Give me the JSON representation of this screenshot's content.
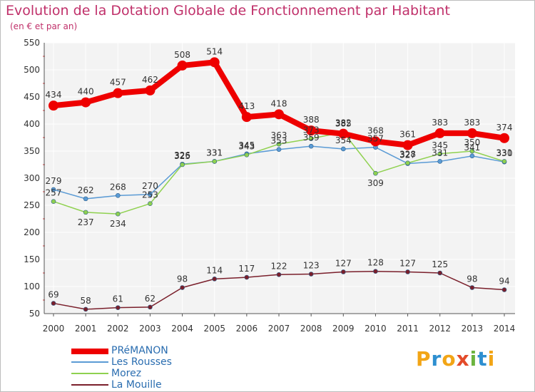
{
  "title": "Evolution de la Dotation Globale de Fonctionnement par Habitant",
  "subtitle": "(en € et par an)",
  "logo": {
    "letters": [
      "P",
      "r",
      "o",
      "x",
      "i",
      "t",
      "i"
    ],
    "colors": [
      "#f2a516",
      "#2e8fd0",
      "#f2a516",
      "#e34b2a",
      "#6cb43f",
      "#2e8fd0",
      "#f2a516"
    ]
  },
  "chart_data": {
    "type": "line",
    "title": "Evolution de la Dotation Globale de Fonctionnement par Habitant",
    "subtitle": "(en € et par an)",
    "x": [
      "2000",
      "2001",
      "2002",
      "2003",
      "2004",
      "2005",
      "2006",
      "2007",
      "2008",
      "2009",
      "2010",
      "2011",
      "2012",
      "2013",
      "2014"
    ],
    "ylim": [
      50,
      550
    ],
    "yticks": [
      50,
      100,
      150,
      200,
      250,
      300,
      350,
      400,
      450,
      500,
      550
    ],
    "grid": true,
    "legend_position": "bottom-left",
    "series": [
      {
        "name": "PRéMANON",
        "color": "#ee0000",
        "values": [
          434,
          440,
          457,
          462,
          508,
          514,
          413,
          418,
          388,
          382,
          368,
          361,
          383,
          383,
          374
        ],
        "labels": [
          "434",
          "440",
          "457",
          "462",
          "508",
          "514",
          "413",
          "418",
          "388",
          "382",
          "368",
          "361",
          "383",
          "383",
          "374"
        ],
        "label_pos": [
          "up",
          "up",
          "up",
          "up",
          "up",
          "up",
          "up",
          "up",
          "up",
          "up",
          "up",
          "up",
          "up",
          "up",
          "up"
        ]
      },
      {
        "name": "Les Rousses",
        "color": "#5b9bd5",
        "values": [
          279,
          262,
          268,
          270,
          326,
          331,
          345,
          353,
          359,
          354,
          357,
          327,
          331,
          341,
          330
        ],
        "labels": [
          "279",
          "262",
          "268",
          "270",
          "326",
          "331",
          "345",
          "353",
          "359",
          "354",
          "357",
          "327",
          "331",
          "341",
          "330"
        ],
        "label_pos": [
          "up",
          "up",
          "up",
          "up",
          "up",
          "up",
          "up",
          "up",
          "up",
          "up",
          "up",
          "up",
          "up",
          "up",
          "up"
        ]
      },
      {
        "name": "Morez",
        "color": "#8fd14f",
        "values": [
          257,
          237,
          234,
          253,
          325,
          331,
          343,
          363,
          373,
          385,
          309,
          328,
          345,
          350,
          331
        ],
        "labels": [
          "257",
          "237",
          "234",
          "253",
          "325",
          "331",
          "343",
          "363",
          "373",
          "385",
          "309",
          "328",
          "345",
          "350",
          "331"
        ],
        "label_pos": [
          "up",
          "down",
          "down",
          "up",
          "up",
          "up",
          "up",
          "up",
          "up",
          "up",
          "down",
          "up",
          "up",
          "up",
          "up"
        ]
      },
      {
        "name": "La Mouille",
        "color": "#7a1f2b",
        "values": [
          69,
          58,
          61,
          62,
          98,
          114,
          117,
          122,
          123,
          127,
          128,
          127,
          125,
          98,
          94
        ],
        "labels": [
          "69",
          "58",
          "61",
          "62",
          "98",
          "114",
          "117",
          "122",
          "123",
          "127",
          "128",
          "127",
          "125",
          "98",
          "94"
        ],
        "label_pos": [
          "up",
          "up",
          "up",
          "up",
          "up",
          "up",
          "up",
          "up",
          "up",
          "up",
          "up",
          "up",
          "up",
          "up",
          "up"
        ]
      }
    ]
  }
}
